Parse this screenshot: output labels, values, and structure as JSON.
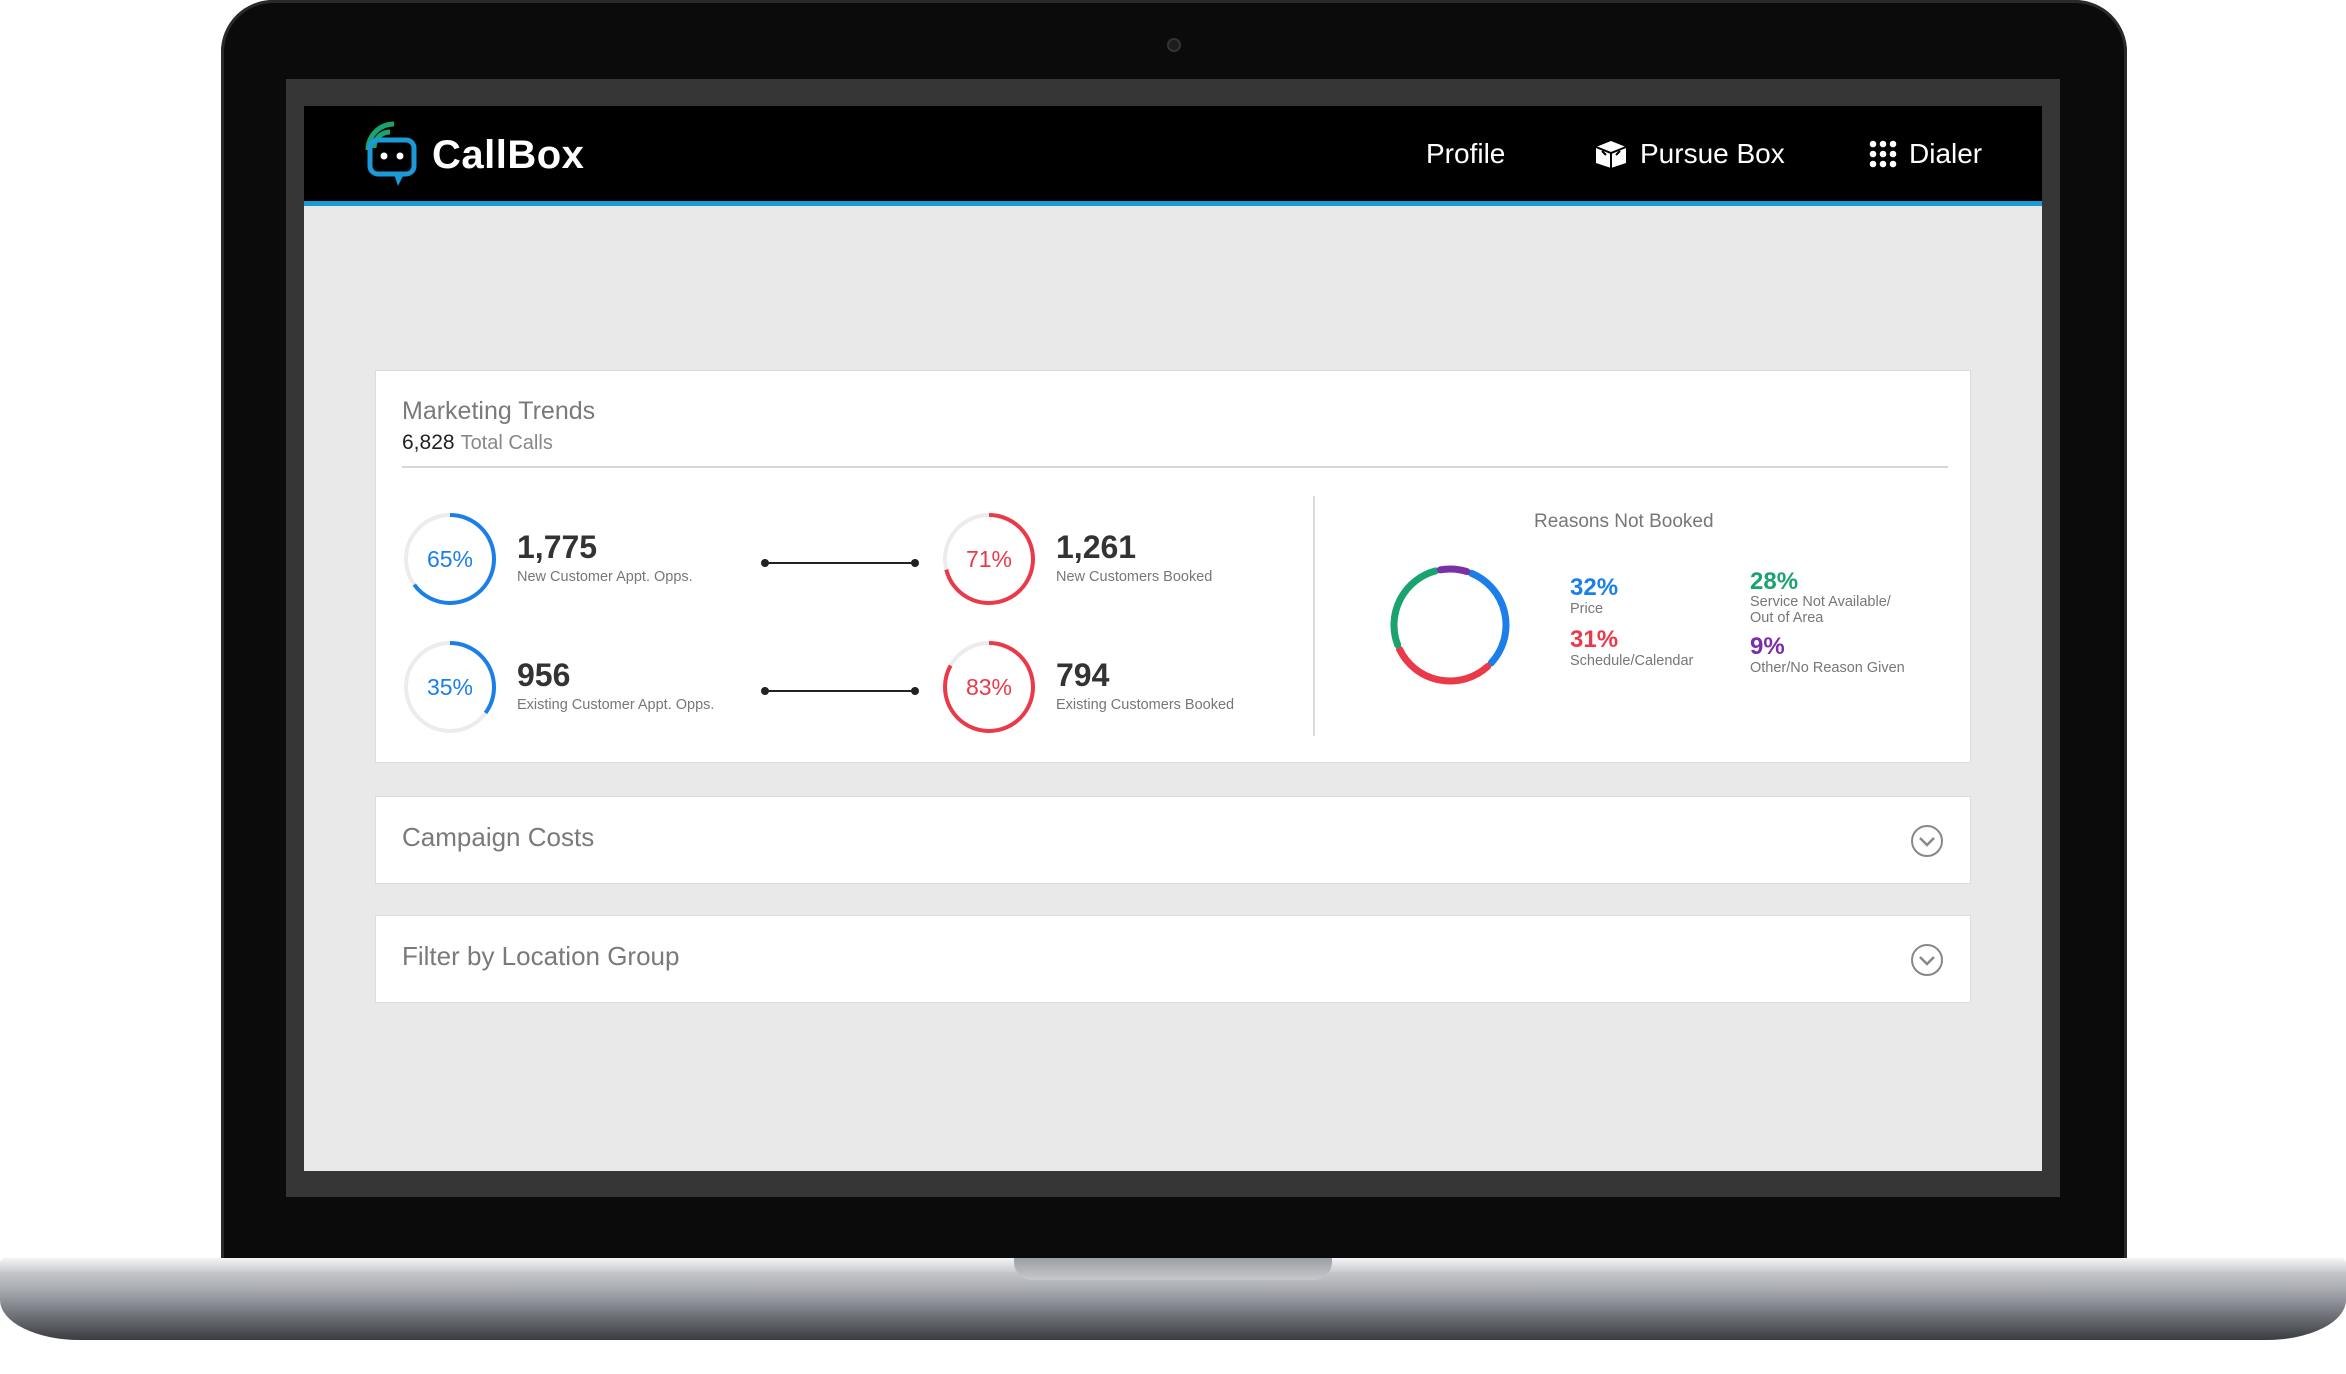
{
  "header": {
    "app_name": "CallBox",
    "nav": [
      {
        "label": "Profile",
        "icon": ""
      },
      {
        "label": "Pursue Box",
        "icon": "box-icon"
      },
      {
        "label": "Dialer",
        "icon": "dialpad-icon"
      }
    ],
    "accent": "#1a9bd7"
  },
  "marketing_trends": {
    "title": "Marketing Trends",
    "total_calls": "6,828",
    "total_calls_label": "Total Calls",
    "rows": [
      {
        "left": {
          "pct": "65%",
          "value": 0.65,
          "num": "1,775",
          "label": "New Customer Appt. Opps.",
          "color": "#1a7fe8"
        },
        "right": {
          "pct": "71%",
          "value": 0.71,
          "num": "1,261",
          "label": "New Customers Booked",
          "color": "#ea3a4a"
        }
      },
      {
        "left": {
          "pct": "35%",
          "value": 0.35,
          "num": "956",
          "label": "Existing Customer Appt. Opps.",
          "color": "#1a7fe8"
        },
        "right": {
          "pct": "83%",
          "value": 0.83,
          "num": "794",
          "label": "Existing Customers Booked",
          "color": "#ea3a4a"
        }
      }
    ],
    "reasons": {
      "title": "Reasons Not Booked",
      "items": [
        {
          "pct": "32%",
          "value": 32,
          "label": "Price",
          "color": "#1a7fe8"
        },
        {
          "pct": "31%",
          "value": 31,
          "label": "Schedule/Calendar",
          "color": "#ea3a4a"
        },
        {
          "pct": "28%",
          "value": 28,
          "label": "Service Not Available/ Out of Area",
          "color": "#1aa36f"
        },
        {
          "pct": "9%",
          "value": 9,
          "label": "Other/No Reason Given",
          "color": "#7b2fa6"
        }
      ]
    }
  },
  "campaign_costs": {
    "title": "Campaign Costs"
  },
  "location_filter": {
    "title": "Filter by Location Group"
  }
}
